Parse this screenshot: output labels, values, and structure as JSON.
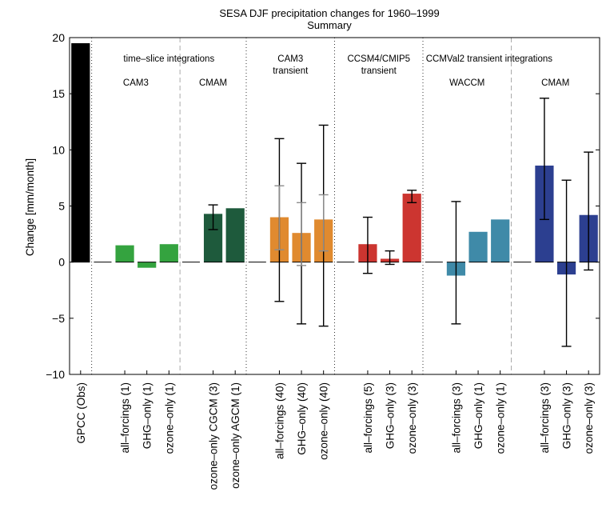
{
  "chart_data": {
    "type": "bar",
    "title": "SESA DJF precipitation changes for 1960–1999",
    "subtitle": "Summary",
    "ylabel": "Change [mm/month]",
    "xlabel": "",
    "ylim": [
      -10,
      20
    ],
    "yticks": [
      "−10",
      "−5",
      "0",
      "5",
      "10",
      "15",
      "20"
    ],
    "ytick_values": [
      -10,
      -5,
      0,
      5,
      10,
      15,
      20
    ],
    "grid": false,
    "legend": "none",
    "categories": [
      "GPCC (Obs)",
      "all–forcings (1)",
      "GHG–only (1)",
      "ozone–only (1)",
      "ozone–only CGCM (3)",
      "ozone–only AGCM (1)",
      "all–forcings (40)",
      "GHG–only (40)",
      "ozone–only (40)",
      "all–forcings (5)",
      "GHG–only (3)",
      "ozone–only (3)",
      "all–forcings (3)",
      "GHG–only (1)",
      "ozone–only (1)",
      "all–forcings (3)",
      "GHG–only (3)",
      "ozone–only (3)"
    ],
    "slots": [
      0,
      2,
      3,
      4,
      6,
      7,
      9,
      10,
      11,
      13,
      14,
      15,
      17,
      18,
      19,
      21,
      22,
      23
    ],
    "values": [
      19.5,
      1.5,
      -0.5,
      1.6,
      4.3,
      4.8,
      4.0,
      2.6,
      3.8,
      1.6,
      0.3,
      6.1,
      -1.2,
      2.7,
      3.8,
      8.6,
      -1.1,
      4.2
    ],
    "colors": [
      "#000000",
      "#34a33f",
      "#34a33f",
      "#34a33f",
      "#1e5a3c",
      "#1e5a3c",
      "#e08a2f",
      "#e08a2f",
      "#e08a2f",
      "#cc3530",
      "#cc3530",
      "#cc3530",
      "#3f8aa8",
      "#3f8aa8",
      "#3f8aa8",
      "#2c3f90",
      "#2c3f90",
      "#2c3f90"
    ],
    "error_bars": [
      null,
      null,
      null,
      null,
      [
        2.9,
        5.1
      ],
      null,
      [
        -3.5,
        11.0
      ],
      [
        -5.5,
        8.8
      ],
      [
        -5.7,
        12.2
      ],
      [
        -1.0,
        4.0
      ],
      [
        -0.2,
        1.0
      ],
      [
        5.3,
        6.4
      ],
      [
        -5.5,
        5.4
      ],
      null,
      null,
      [
        3.8,
        14.6
      ],
      [
        -7.5,
        7.3
      ],
      [
        -0.7,
        9.8
      ]
    ],
    "inner_error_bars": [
      null,
      null,
      null,
      null,
      null,
      null,
      [
        1.1,
        6.8
      ],
      [
        -0.3,
        5.3
      ],
      [
        1.0,
        6.0
      ],
      null,
      null,
      null,
      null,
      null,
      null,
      null,
      null,
      null
    ],
    "zero_segments": [
      [
        1,
        2
      ],
      [
        5,
        6
      ],
      [
        8,
        9
      ],
      [
        12,
        13
      ],
      [
        16,
        17
      ],
      [
        20,
        21
      ]
    ],
    "separators": [
      {
        "slot": 1,
        "style": "dotted"
      },
      {
        "slot": 5,
        "style": "dashed"
      },
      {
        "slot": 8,
        "style": "dotted"
      },
      {
        "slot": 12,
        "style": "dotted"
      },
      {
        "slot": 16,
        "style": "dotted"
      },
      {
        "slot": 20,
        "style": "dashed"
      }
    ],
    "group_headers": [
      {
        "text": "time–slice integrations",
        "center": 4.5,
        "row": 0
      },
      {
        "text": "CAM3",
        "center": 10,
        "row": 0
      },
      {
        "text": "transient",
        "center": 10,
        "row": 1
      },
      {
        "text": "CCSM4/CMIP5",
        "center": 14,
        "row": 0
      },
      {
        "text": "transient",
        "center": 14,
        "row": 1
      },
      {
        "text": "CCMVal2 transient integrations",
        "center": 19,
        "row": 0
      },
      {
        "text": "CAM3",
        "center": 3,
        "row": 2
      },
      {
        "text": "CMAM",
        "center": 6.5,
        "row": 2
      },
      {
        "text": "WACCM",
        "center": 18,
        "row": 2
      },
      {
        "text": "CMAM",
        "center": 22,
        "row": 2
      }
    ]
  }
}
